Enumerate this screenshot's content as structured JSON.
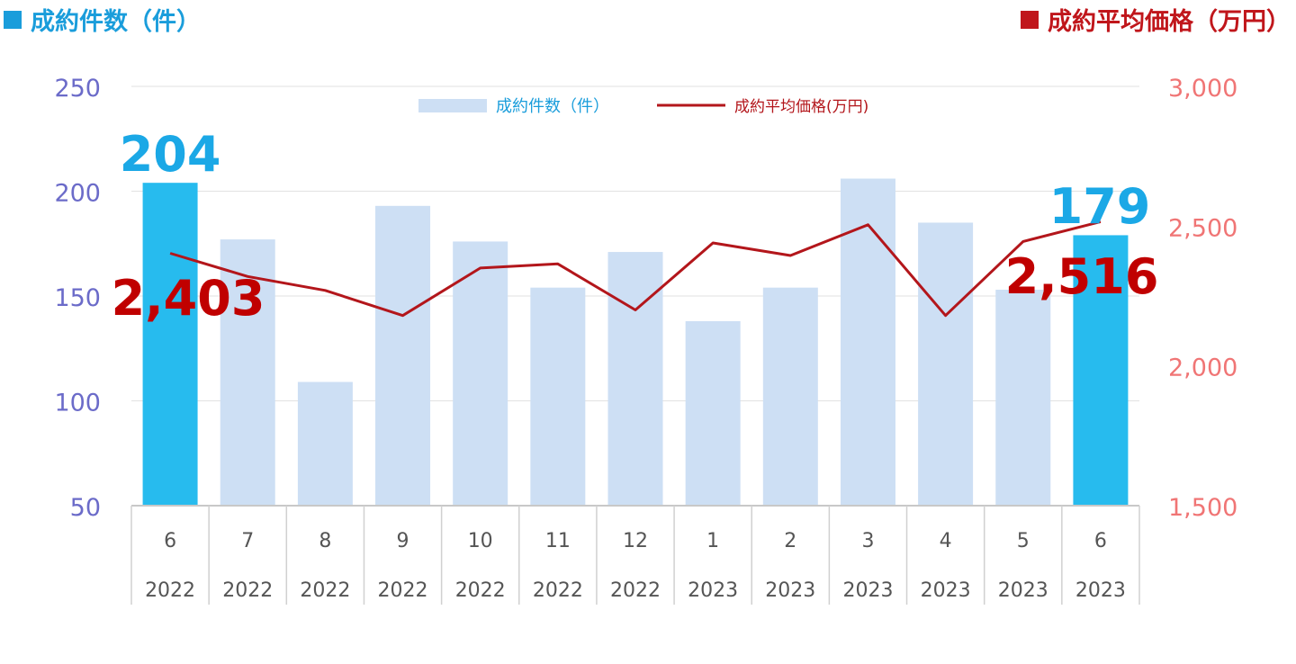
{
  "header": {
    "left_title": "成約件数（件）",
    "right_title": "成約平均価格（万円）"
  },
  "colors": {
    "bar_normal": "#cddff4",
    "bar_highlight": "#27bbee",
    "line": "#b3161b",
    "left_axis": "#6b6bc9",
    "right_axis": "#f07575",
    "bar_label": "#1ba8e6",
    "line_label": "#c00000",
    "header_left": "#1a9ddb",
    "header_right": "#c0161b"
  },
  "chart_data": {
    "type": "bar",
    "categories": [
      {
        "month": "6",
        "year": "2022"
      },
      {
        "month": "7",
        "year": "2022"
      },
      {
        "month": "8",
        "year": "2022"
      },
      {
        "month": "9",
        "year": "2022"
      },
      {
        "month": "10",
        "year": "2022"
      },
      {
        "month": "11",
        "year": "2022"
      },
      {
        "month": "12",
        "year": "2022"
      },
      {
        "month": "1",
        "year": "2023"
      },
      {
        "month": "2",
        "year": "2023"
      },
      {
        "month": "3",
        "year": "2023"
      },
      {
        "month": "4",
        "year": "2023"
      },
      {
        "month": "5",
        "year": "2023"
      },
      {
        "month": "6",
        "year": "2023"
      }
    ],
    "series": [
      {
        "name": "成約件数(件)",
        "type": "bar",
        "axis": "left",
        "values": [
          204,
          177,
          109,
          193,
          176,
          154,
          171,
          138,
          154,
          206,
          185,
          153,
          179
        ],
        "highlight": [
          true,
          false,
          false,
          false,
          false,
          false,
          false,
          false,
          false,
          false,
          false,
          false,
          true
        ]
      },
      {
        "name": "成約平均価格(万円)",
        "type": "line",
        "axis": "right",
        "values": [
          2403,
          2320,
          2270,
          2180,
          2350,
          2365,
          2200,
          2440,
          2395,
          2505,
          2180,
          2445,
          2516
        ]
      }
    ],
    "left_axis": {
      "min": 50,
      "max": 250,
      "ticks": [
        "50",
        "100",
        "150",
        "200",
        "250"
      ]
    },
    "right_axis": {
      "min": 1500,
      "max": 3000,
      "ticks": [
        "1,500",
        "2,000",
        "2,500",
        "3,000"
      ]
    },
    "annotations": [
      {
        "series": 0,
        "index": 0,
        "text": "204"
      },
      {
        "series": 0,
        "index": 12,
        "text": "179"
      },
      {
        "series": 1,
        "index": 0,
        "text": "2,403"
      },
      {
        "series": 1,
        "index": 12,
        "text": "2,516"
      }
    ],
    "legend": {
      "position": "top-center",
      "entries": [
        "成約件数（件）",
        "成約平均価格(万円)"
      ]
    },
    "grid": true
  }
}
